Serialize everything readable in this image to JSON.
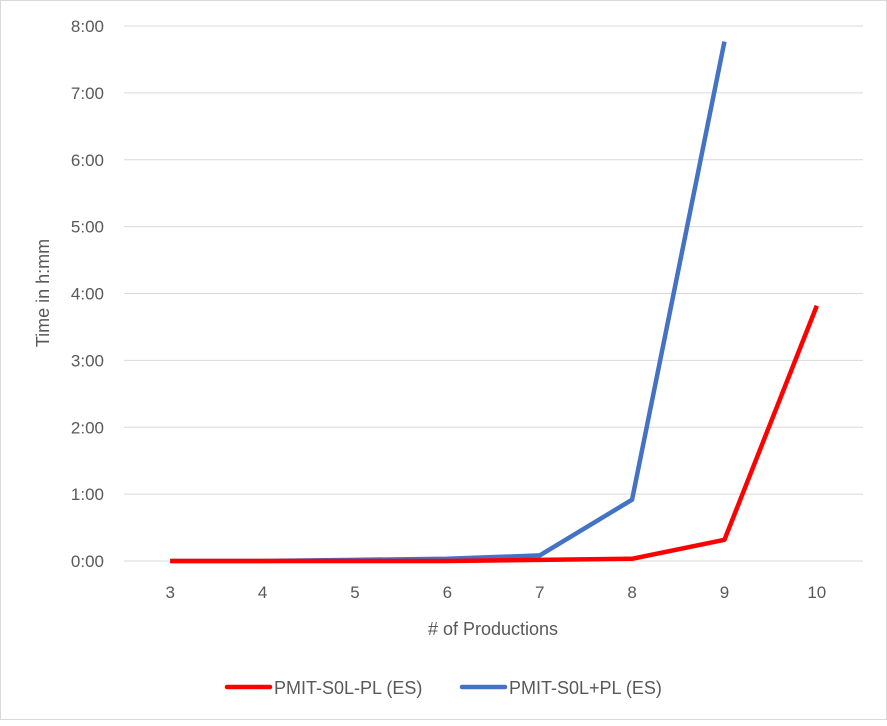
{
  "chart_data": {
    "type": "line",
    "title": "",
    "xlabel": "# of Productions",
    "ylabel": "Time in h:mm",
    "categories": [
      "3",
      "4",
      "5",
      "6",
      "7",
      "8",
      "9",
      "10"
    ],
    "y_ticks": [
      "0:00",
      "1:00",
      "2:00",
      "3:00",
      "4:00",
      "5:00",
      "6:00",
      "7:00",
      "8:00"
    ],
    "ylim": [
      "0:00",
      "8:00"
    ],
    "grid": true,
    "legend_position": "bottom",
    "series": [
      {
        "name": "PMIT-S0L-PL (ES)",
        "color": "#ff0000",
        "values": [
          "0:00",
          "0:00",
          "0:00",
          "0:00",
          "0:01",
          "0:02",
          "0:19",
          "3:49"
        ]
      },
      {
        "name": "PMIT-S0L+PL (ES)",
        "color": "#4472c4",
        "values": [
          "0:00",
          "0:00",
          "0:01",
          "0:02",
          "0:05",
          "0:55",
          "7:46",
          null
        ]
      }
    ]
  }
}
